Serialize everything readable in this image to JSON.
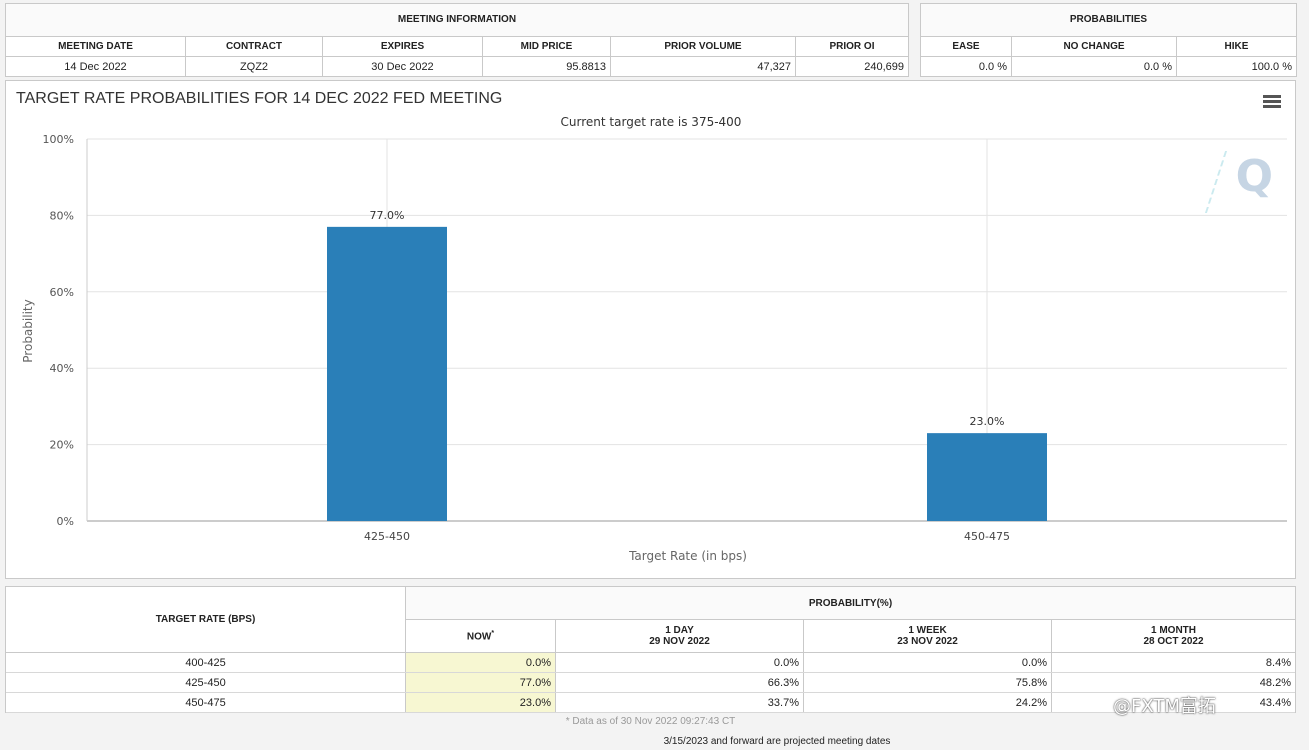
{
  "meeting_info": {
    "header": "MEETING INFORMATION",
    "columns": [
      "MEETING DATE",
      "CONTRACT",
      "EXPIRES",
      "MID PRICE",
      "PRIOR VOLUME",
      "PRIOR OI"
    ],
    "row": {
      "meeting_date": "14 Dec 2022",
      "contract": "ZQZ2",
      "expires": "30 Dec 2022",
      "mid_price": "95.8813",
      "prior_volume": "47,327",
      "prior_oi": "240,699"
    }
  },
  "probabilities": {
    "header": "PROBABILITIES",
    "columns": [
      "EASE",
      "NO CHANGE",
      "HIKE"
    ],
    "row": {
      "ease": "0.0 %",
      "no_change": "0.0 %",
      "hike": "100.0 %"
    }
  },
  "chart_data": {
    "type": "bar",
    "title": "TARGET RATE PROBABILITIES FOR 14 DEC 2022 FED MEETING",
    "subtitle": "Current target rate is 375-400",
    "xlabel": "Target Rate (in bps)",
    "ylabel": "Probability",
    "categories": [
      "425-450",
      "450-475"
    ],
    "values": [
      77.0,
      23.0
    ],
    "data_labels": [
      "77.0%",
      "23.0%"
    ],
    "ylim": [
      0,
      100
    ],
    "yticks": [
      0,
      20,
      40,
      60,
      80,
      100
    ],
    "ytick_labels": [
      "0%",
      "20%",
      "40%",
      "60%",
      "80%",
      "100%"
    ],
    "grid": true,
    "bar_color": "#2a7fb8",
    "watermark": "Q"
  },
  "target_table": {
    "rate_header": "TARGET RATE (BPS)",
    "prob_header": "PROBABILITY(%)",
    "now_label": "NOW",
    "now_marker": "*",
    "columns": [
      {
        "label": "1 DAY",
        "date": "29 NOV 2022"
      },
      {
        "label": "1 WEEK",
        "date": "23 NOV 2022"
      },
      {
        "label": "1 MONTH",
        "date": "28 OCT 2022"
      }
    ],
    "rows": [
      {
        "rate": "400-425",
        "now": "0.0%",
        "d1": "0.0%",
        "w1": "0.0%",
        "m1": "8.4%"
      },
      {
        "rate": "425-450",
        "now": "77.0%",
        "d1": "66.3%",
        "w1": "75.8%",
        "m1": "48.2%"
      },
      {
        "rate": "450-475",
        "now": "23.0%",
        "d1": "33.7%",
        "w1": "24.2%",
        "m1": "43.4%"
      }
    ],
    "data_note": "* Data as of 30 Nov 2022 09:27:43 CT"
  },
  "footer_note": "3/15/2023 and forward are projected meeting dates",
  "overlay_watermark": "@FXTM富拓"
}
